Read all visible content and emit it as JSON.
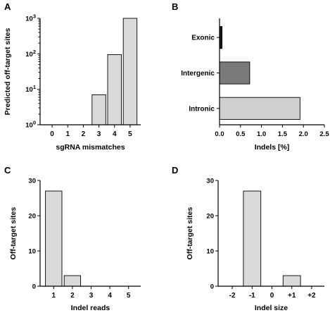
{
  "chart_data": [
    {
      "panel": "A",
      "type": "bar",
      "ylabel": "Predicted off-target sites",
      "xlabel": "sgRNA mismatches",
      "categories": [
        "0",
        "1",
        "2",
        "3",
        "4",
        "5"
      ],
      "values": [
        0,
        0,
        0,
        7,
        95,
        1000
      ],
      "yscale": "log",
      "ylim": [
        1,
        1000
      ],
      "yticks": [
        {
          "value": 1,
          "base": "10",
          "exp": "0"
        },
        {
          "value": 10,
          "base": "10",
          "exp": "1"
        },
        {
          "value": 100,
          "base": "10",
          "exp": "2"
        },
        {
          "value": 1000,
          "base": "10",
          "exp": "3"
        }
      ],
      "bar_color": "#d9d9d9"
    },
    {
      "panel": "B",
      "type": "bar",
      "orientation": "horizontal",
      "xlabel": "Indels [%]",
      "categories": [
        "Exonic",
        "Intergenic",
        "Intronic"
      ],
      "values": [
        0.06,
        0.72,
        1.92
      ],
      "colors": [
        "#1a1a1a",
        "#7a7a7a",
        "#cfcfcf"
      ],
      "xlim": [
        0,
        2.5
      ],
      "xticks": [
        "0.0",
        "0.5",
        "1.0",
        "1.5",
        "2.0",
        "2.5"
      ]
    },
    {
      "panel": "C",
      "type": "bar",
      "ylabel": "Off-target sites",
      "xlabel": "Indel reads",
      "categories": [
        "1",
        "2",
        "3",
        "4",
        "5"
      ],
      "values": [
        27,
        3,
        0,
        0,
        0
      ],
      "ylim": [
        0,
        30
      ],
      "yticks": [
        "0",
        "10",
        "20",
        "30"
      ],
      "bar_color": "#d9d9d9"
    },
    {
      "panel": "D",
      "type": "bar",
      "ylabel": "Off-target sites",
      "xlabel": "Indel size",
      "categories": [
        "-2",
        "-1",
        "0",
        "+1",
        "+2"
      ],
      "values": [
        0,
        27,
        0,
        3,
        0
      ],
      "ylim": [
        0,
        30
      ],
      "yticks": [
        "0",
        "10",
        "20",
        "30"
      ],
      "bar_color": "#d9d9d9"
    }
  ]
}
